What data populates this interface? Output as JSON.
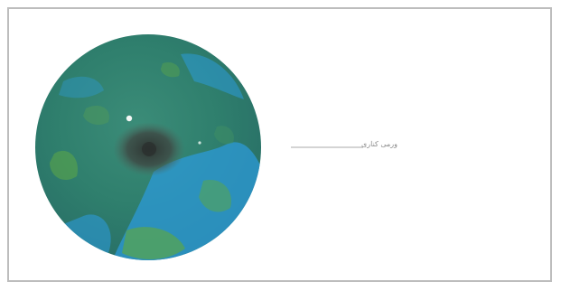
{
  "diagram": {
    "label": "ورمی کناری"
  },
  "colors": {
    "border": "#bdbdbd",
    "leader_line": "#a8a8a8",
    "sphere_base": "#2f7f6d",
    "sphere_water": "#2c9ad8",
    "sphere_land": "#5aa54a",
    "center_spot": "#3a4440"
  },
  "icons": {
    "object": "sphere-icon",
    "leader": "leader-line"
  }
}
